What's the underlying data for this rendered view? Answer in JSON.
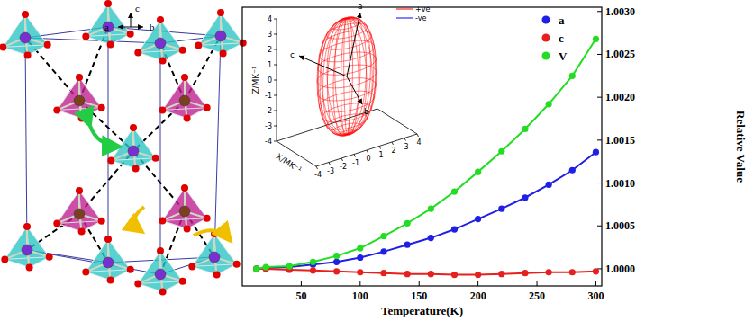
{
  "structure": {
    "axis_labels": [
      "c",
      "a",
      "b"
    ]
  },
  "chart_data": [
    {
      "type": "line",
      "marker": "circle",
      "xlabel": "Temperature(K)",
      "ylabel": "Relative Value",
      "x": [
        12,
        20,
        40,
        60,
        80,
        100,
        120,
        140,
        160,
        180,
        200,
        220,
        240,
        260,
        280,
        300
      ],
      "xlim": [
        0,
        305
      ],
      "xticks": [
        50,
        100,
        150,
        200,
        250,
        300
      ],
      "ylim": [
        0.9998,
        1.00305
      ],
      "yticks": [
        {
          "value": 1,
          "label": "1.0000"
        },
        {
          "value": 1.0005,
          "label": "1.0005"
        },
        {
          "value": 1.001,
          "label": "1.0010"
        },
        {
          "value": 1.0015,
          "label": "1.0015"
        },
        {
          "value": 1.002,
          "label": "1.0020"
        },
        {
          "value": 1.0025,
          "label": "1.0025"
        },
        {
          "value": 1.003,
          "label": "1.0030"
        }
      ],
      "legend": "top-right",
      "series": [
        {
          "name": "a",
          "color": "#1f1fe6",
          "values": [
            1.0,
            1.00001,
            1.00002,
            1.00005,
            1.00008,
            1.00013,
            1.0002,
            1.00028,
            1.00036,
            1.00046,
            1.00058,
            1.0007,
            1.00083,
            1.00098,
            1.00115,
            1.00136
          ]
        },
        {
          "name": "c",
          "color": "#e61f1f",
          "values": [
            1.0,
            1.0,
            0.99999,
            0.99998,
            0.99997,
            0.99996,
            0.99995,
            0.99994,
            0.99994,
            0.99993,
            0.99993,
            0.99994,
            0.99995,
            0.99996,
            0.99996,
            0.99997
          ]
        },
        {
          "name": "V",
          "color": "#22dd22",
          "values": [
            1.0,
            1.00002,
            1.00003,
            1.00008,
            1.00015,
            1.00024,
            1.00038,
            1.00053,
            1.0007,
            1.0009,
            1.00113,
            1.00137,
            1.00163,
            1.00192,
            1.00225,
            1.00268
          ]
        }
      ]
    },
    {
      "type": "surface3d",
      "xlabel": "X/MK⁻¹",
      "zlabel": "Z/MK⁻¹",
      "xlim": [
        -4,
        4
      ],
      "xticks": [
        -4,
        -3,
        -2,
        -1,
        0,
        1,
        2,
        3,
        4
      ],
      "zlim": [
        -4,
        4
      ],
      "zticks": [
        -4,
        -3,
        -2,
        -1,
        0,
        1,
        2,
        3,
        4
      ],
      "axis_labels": [
        "a",
        "b",
        "c"
      ],
      "legend": "top-right",
      "series": [
        {
          "name": "+ve",
          "color": "#ff0000",
          "line_style": "solid"
        },
        {
          "name": "-ve",
          "color": "#0000ff",
          "line_style": "solid"
        }
      ]
    }
  ]
}
